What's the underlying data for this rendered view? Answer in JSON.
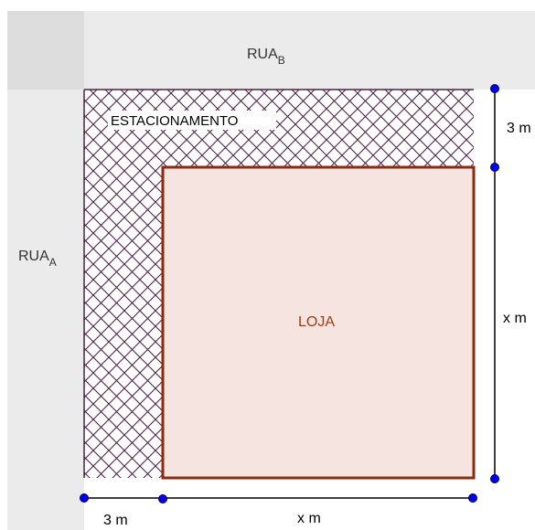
{
  "streets": {
    "rua_b": {
      "base": "RUA",
      "sub": "B"
    },
    "rua_a": {
      "base": "RUA",
      "sub": "A"
    }
  },
  "regions": {
    "parking_label": "ESTACIONAMENTO",
    "store_label": "LOJA"
  },
  "measurements": {
    "top_right": "3 m",
    "right": "x m",
    "bottom_left": "3 m",
    "bottom": "x m"
  },
  "colors": {
    "street": "#ebebeb",
    "parking_hatch": "#4a2445",
    "store_fill": "#f5e4e0",
    "store_border": "#8b2c12",
    "store_text": "#a23b12",
    "dimension_point": "#0000ff"
  }
}
